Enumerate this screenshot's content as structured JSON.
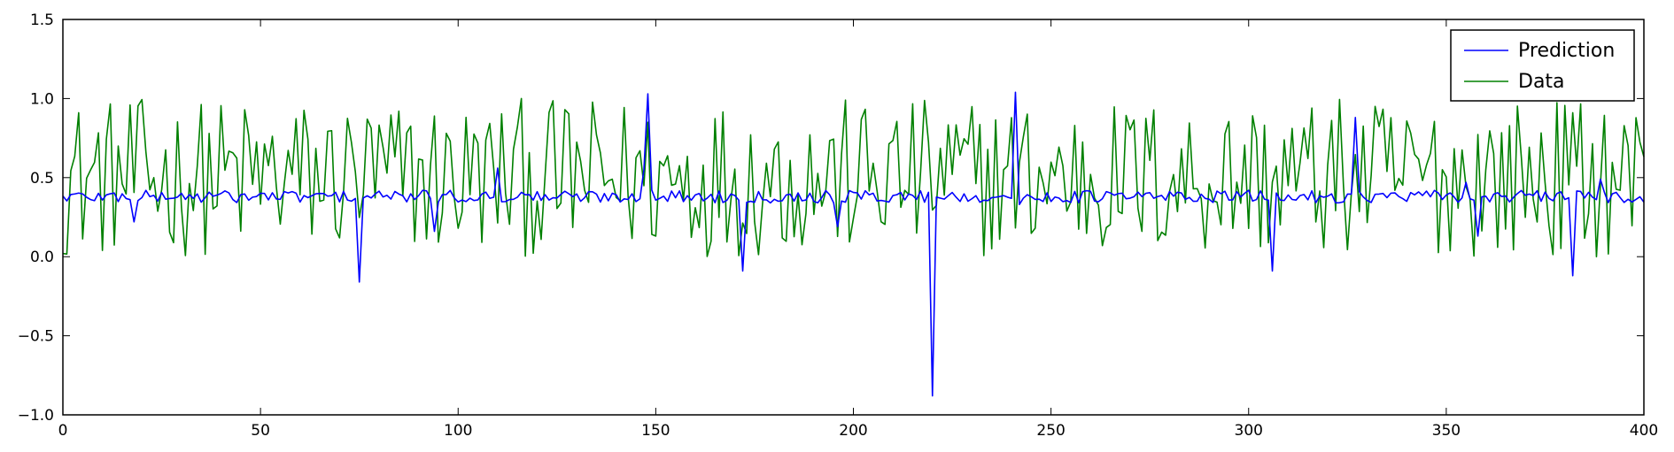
{
  "chart_data": {
    "type": "line",
    "title": "",
    "xlabel": "",
    "ylabel": "",
    "xlim": [
      0,
      400
    ],
    "ylim": [
      -1.0,
      1.5
    ],
    "x_ticks": [
      0,
      50,
      100,
      150,
      200,
      250,
      300,
      350,
      400
    ],
    "x_tick_labels": [
      "0",
      "50",
      "100",
      "150",
      "200",
      "250",
      "300",
      "350",
      "400"
    ],
    "y_ticks": [
      -1.0,
      -0.5,
      0.0,
      0.5,
      1.0,
      1.5
    ],
    "y_tick_labels": [
      "−1.0",
      "−0.5",
      "0.0",
      "0.5",
      "1.0",
      "1.5"
    ],
    "grid": false,
    "legend_position": "top-right",
    "series": [
      {
        "name": "Prediction",
        "color": "#0000ff",
        "x_start": 0,
        "x_step": 1,
        "baseline": 0.38,
        "values_note_points": {
          "18": 0.22,
          "75": -0.16,
          "94": 0.16,
          "110": 0.56,
          "147": 0.55,
          "148": 1.03,
          "149": 0.42,
          "172": -0.09,
          "196": 0.19,
          "220": -0.88,
          "241": 1.04,
          "242": 0.33,
          "306": -0.09,
          "327": 0.88,
          "355": 0.47,
          "358": 0.13,
          "382": -0.12,
          "389": 0.49
        }
      },
      {
        "name": "Data",
        "color": "#008000",
        "x_start": 0,
        "x_step": 1,
        "range": [
          0.0,
          1.0
        ]
      }
    ]
  },
  "legend": {
    "prediction_label": "Prediction",
    "data_label": "Data"
  }
}
